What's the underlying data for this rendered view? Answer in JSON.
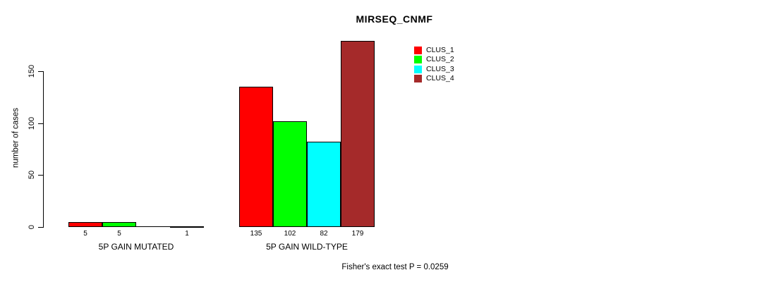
{
  "chart_data": {
    "type": "bar",
    "title": "MIRSEQ_CNMF",
    "ylabel": "number of cases",
    "xlabel": "",
    "footer": "Fisher's exact test P = 0.0259",
    "categories": [
      "5P GAIN MUTATED",
      "5P GAIN WILD-TYPE"
    ],
    "series": [
      {
        "name": "CLUS_1",
        "color": "#ff0000",
        "values": [
          5,
          135
        ]
      },
      {
        "name": "CLUS_2",
        "color": "#00ff00",
        "values": [
          5,
          102
        ]
      },
      {
        "name": "CLUS_3",
        "color": "#00ffff",
        "values": [
          0,
          82
        ]
      },
      {
        "name": "CLUS_4",
        "color": "#a52a2a",
        "values": [
          1,
          179
        ]
      }
    ],
    "bar_labels": [
      [
        "5",
        "5",
        "",
        "1"
      ],
      [
        "135",
        "102",
        "82",
        "179"
      ]
    ],
    "yticks": [
      0,
      50,
      100,
      150
    ],
    "ylim": [
      0,
      150
    ],
    "grid": false,
    "legend_position": "top-right",
    "bar_border_color": "#000000",
    "background_color": "#ffffff"
  }
}
